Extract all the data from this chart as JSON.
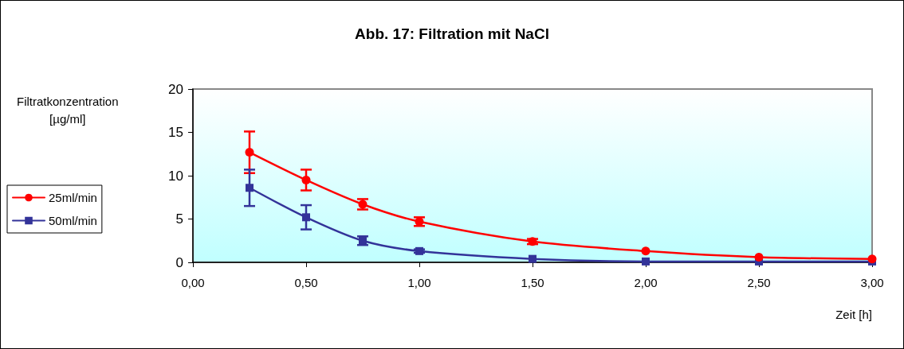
{
  "chart_data": {
    "type": "line",
    "title": "Abb. 17: Filtration mit NaCl",
    "xlabel": "Zeit [h]",
    "ylabel": "Filtratkonzentration\n[µg/ml]",
    "x": [
      0.25,
      0.5,
      0.75,
      1.0,
      1.5,
      2.0,
      2.5,
      3.0
    ],
    "series": [
      {
        "name": "25ml/min",
        "color": "#ff0000",
        "marker": "circle",
        "values": [
          12.7,
          9.5,
          6.7,
          4.7,
          2.4,
          1.3,
          0.6,
          0.4
        ],
        "errors": [
          2.4,
          1.2,
          0.6,
          0.5,
          0.3,
          null,
          null,
          null
        ]
      },
      {
        "name": "50ml/min",
        "color": "#333399",
        "marker": "square",
        "values": [
          8.6,
          5.2,
          2.5,
          1.3,
          0.4,
          0.1,
          0.1,
          0.1
        ],
        "errors": [
          2.1,
          1.4,
          0.5,
          0.2,
          null,
          null,
          null,
          null
        ]
      }
    ],
    "xlim": [
      0,
      3
    ],
    "xticks": [
      {
        "value": 0,
        "label": "0,00"
      },
      {
        "value": 0.5,
        "label": "0,50"
      },
      {
        "value": 1,
        "label": "1,00"
      },
      {
        "value": 1.5,
        "label": "1,50"
      },
      {
        "value": 2,
        "label": "2,00"
      },
      {
        "value": 2.5,
        "label": "2,50"
      },
      {
        "value": 3,
        "label": "3,00"
      }
    ],
    "ylim": [
      0,
      20
    ],
    "yticks": [
      0,
      5,
      10,
      15,
      20
    ],
    "grid": false,
    "legend": "left",
    "line_style": "solid"
  }
}
